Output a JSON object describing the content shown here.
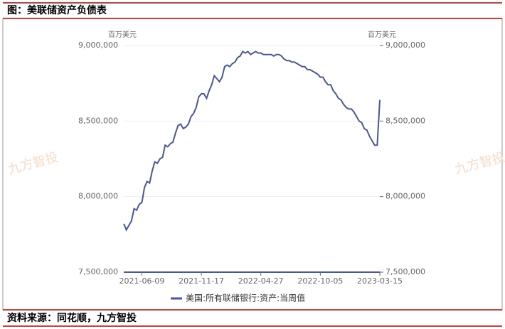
{
  "chart_data": {
    "type": "line",
    "title": "图：美联储资产负债表",
    "source": "资料来源：同花顺，九方智投",
    "watermark": "九方智投",
    "y_unit": "百万美元",
    "y2_unit": "百万美元",
    "x": [
      "2021-04-21",
      "2021-04-28",
      "2021-05-05",
      "2021-05-12",
      "2021-05-19",
      "2021-05-26",
      "2021-06-02",
      "2021-06-09",
      "2021-06-16",
      "2021-06-23",
      "2021-06-30",
      "2021-07-07",
      "2021-07-14",
      "2021-07-21",
      "2021-07-28",
      "2021-08-04",
      "2021-08-11",
      "2021-08-18",
      "2021-08-25",
      "2021-09-01",
      "2021-09-08",
      "2021-09-15",
      "2021-09-22",
      "2021-09-29",
      "2021-10-06",
      "2021-10-13",
      "2021-10-20",
      "2021-10-27",
      "2021-11-03",
      "2021-11-10",
      "2021-11-17",
      "2021-11-24",
      "2021-12-01",
      "2021-12-08",
      "2021-12-15",
      "2021-12-22",
      "2021-12-29",
      "2022-01-05",
      "2022-01-12",
      "2022-01-19",
      "2022-01-26",
      "2022-02-02",
      "2022-02-09",
      "2022-02-16",
      "2022-02-23",
      "2022-03-02",
      "2022-03-09",
      "2022-03-16",
      "2022-03-23",
      "2022-03-30",
      "2022-04-06",
      "2022-04-13",
      "2022-04-20",
      "2022-04-27",
      "2022-05-04",
      "2022-05-11",
      "2022-05-18",
      "2022-05-25",
      "2022-06-01",
      "2022-06-08",
      "2022-06-15",
      "2022-06-22",
      "2022-06-29",
      "2022-07-06",
      "2022-07-13",
      "2022-07-20",
      "2022-07-27",
      "2022-08-03",
      "2022-08-10",
      "2022-08-17",
      "2022-08-24",
      "2022-08-31",
      "2022-09-07",
      "2022-09-14",
      "2022-09-21",
      "2022-09-28",
      "2022-10-05",
      "2022-10-12",
      "2022-10-19",
      "2022-10-26",
      "2022-11-02",
      "2022-11-09",
      "2022-11-16",
      "2022-11-23",
      "2022-11-30",
      "2022-12-07",
      "2022-12-14",
      "2022-12-21",
      "2022-12-28",
      "2023-01-04",
      "2023-01-11",
      "2023-01-18",
      "2023-01-25",
      "2023-02-01",
      "2023-02-08",
      "2023-02-15",
      "2023-02-22",
      "2023-03-01",
      "2023-03-08",
      "2023-03-15"
    ],
    "series": [
      {
        "name": "美国:所有联储银行:资产:当周值",
        "color": "#4a5796",
        "values": [
          7820000,
          7780000,
          7810000,
          7840000,
          7920000,
          7910000,
          7950000,
          7960000,
          8060000,
          8100000,
          8090000,
          8170000,
          8230000,
          8220000,
          8250000,
          8260000,
          8340000,
          8330000,
          8350000,
          8360000,
          8420000,
          8470000,
          8480000,
          8450000,
          8460000,
          8480000,
          8530000,
          8550000,
          8590000,
          8660000,
          8680000,
          8680000,
          8650000,
          8700000,
          8740000,
          8800000,
          8780000,
          8760000,
          8790000,
          8860000,
          8870000,
          8860000,
          8880000,
          8890000,
          8920000,
          8930000,
          8960000,
          8950000,
          8960000,
          8940000,
          8950000,
          8960000,
          8950000,
          8950000,
          8940000,
          8940000,
          8940000,
          8940000,
          8930000,
          8940000,
          8940000,
          8930000,
          8910000,
          8900000,
          8900000,
          8890000,
          8890000,
          8880000,
          8870000,
          8860000,
          8860000,
          8840000,
          8840000,
          8830000,
          8820000,
          8810000,
          8790000,
          8790000,
          8760000,
          8740000,
          8740000,
          8700000,
          8680000,
          8650000,
          8640000,
          8610000,
          8590000,
          8580000,
          8580000,
          8560000,
          8530000,
          8500000,
          8490000,
          8450000,
          8440000,
          8400000,
          8370000,
          8340000,
          8340000,
          8640000
        ]
      }
    ],
    "xlim": [
      "2021-04-21",
      "2023-03-15"
    ],
    "xticks": [
      "2021-06-09",
      "2021-11-17",
      "2022-04-27",
      "2022-10-05",
      "2023-03-15"
    ],
    "ylim": [
      7500000,
      9000000
    ],
    "yticks": [
      {
        "value": 7500000,
        "label": "7,500,000"
      },
      {
        "value": 8000000,
        "label": "8,000,000"
      },
      {
        "value": 8500000,
        "label": "8,500,000"
      },
      {
        "value": 9000000,
        "label": "9,000,000"
      }
    ],
    "y2lim": [
      7500000,
      9000000
    ],
    "y2ticks": [
      {
        "value": 7500000,
        "label": "7,500,000"
      },
      {
        "value": 8000000,
        "label": "8,000,000"
      },
      {
        "value": 8500000,
        "label": "8,500,000"
      },
      {
        "value": 9000000,
        "label": "9,000,000"
      }
    ],
    "grid": true,
    "legend": "bottom"
  }
}
